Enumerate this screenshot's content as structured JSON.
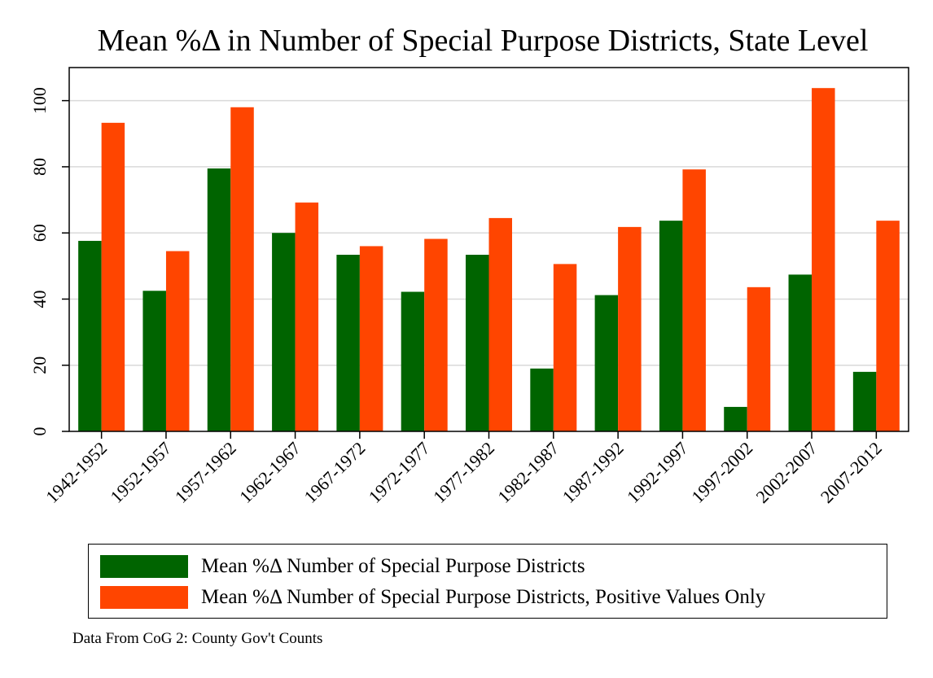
{
  "chart_data": {
    "type": "bar",
    "title": "Mean %Δ in Number of Special Purpose Districts, State Level",
    "xlabel": "",
    "ylabel": "",
    "ylim": [
      0,
      110
    ],
    "yticks": [
      0,
      20,
      40,
      60,
      80,
      100
    ],
    "grid": true,
    "legend_position": "bottom",
    "categories": [
      "1942-1952",
      "1952-1957",
      "1957-1962",
      "1962-1967",
      "1967-1972",
      "1972-1977",
      "1977-1982",
      "1982-1987",
      "1987-1992",
      "1992-1997",
      "1997-2002",
      "2002-2007",
      "2007-2012"
    ],
    "series": [
      {
        "name": "Mean %Δ Number of Special Purpose Districts",
        "color": "#006400",
        "values": [
          57.6,
          42.5,
          79.5,
          60.0,
          53.4,
          42.2,
          53.4,
          19.0,
          41.2,
          63.7,
          7.4,
          47.4,
          18.0
        ]
      },
      {
        "name": "Mean %Δ Number of Special Purpose Districts, Positive Values Only",
        "color": "#ff4500",
        "values": [
          93.3,
          54.5,
          98.0,
          69.2,
          56.0,
          58.2,
          64.5,
          50.6,
          61.8,
          79.2,
          43.6,
          103.8,
          63.7
        ]
      }
    ]
  },
  "footnote": "Data From CoG 2: County Gov't Counts"
}
